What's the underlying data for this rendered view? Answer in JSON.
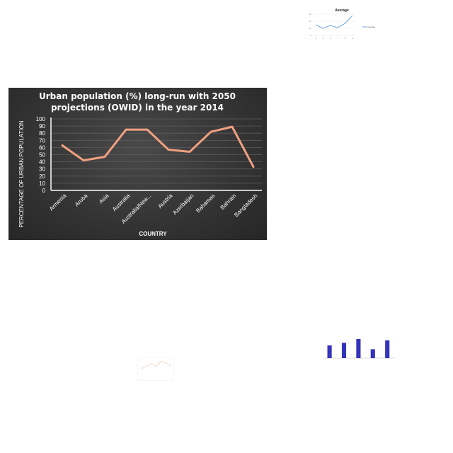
{
  "chart_data": [
    {
      "type": "line",
      "title_lines": [
        "Urban population (%) long-run with 2050",
        "projections (OWID) in the year 2014"
      ],
      "xlabel": "COUNTRY",
      "ylabel": "PERCENTAGE OF URBAN POPULATION",
      "categories": [
        "Armenia",
        "Aruba",
        "Asia",
        "Australia",
        "Australia/New...",
        "Austria",
        "Azerbaijan",
        "Bahamas",
        "Bahrain",
        "Bangladesh"
      ],
      "values": [
        63,
        42,
        47,
        85,
        85,
        57,
        54,
        82,
        89,
        33
      ],
      "ylim": [
        0,
        100
      ],
      "yticks": [
        0,
        10,
        20,
        30,
        40,
        50,
        60,
        70,
        80,
        90,
        100
      ],
      "grid": true,
      "line_color": "#f0a080",
      "background": "#333333"
    },
    {
      "type": "line",
      "title": "Average",
      "series": [
        {
          "name": "Average",
          "values": [
            15,
            10,
            14,
            11,
            17,
            28
          ]
        }
      ],
      "categories": [
        "4",
        "5",
        "6",
        "7",
        "8",
        "9"
      ],
      "ylim": [
        0,
        30
      ],
      "yticks": [
        0,
        10,
        20,
        30
      ],
      "legend": "right",
      "line_color": "#5b9bd5"
    },
    {
      "type": "bar",
      "values": [
        0.5,
        0.6,
        0.75,
        0.35,
        0.7
      ],
      "ylim": [
        0,
        1
      ],
      "bar_color": "#3333bb"
    },
    {
      "type": "line",
      "values": [
        3,
        4,
        5,
        4,
        6,
        5,
        4
      ],
      "line_color": "#f0c0a0"
    }
  ]
}
